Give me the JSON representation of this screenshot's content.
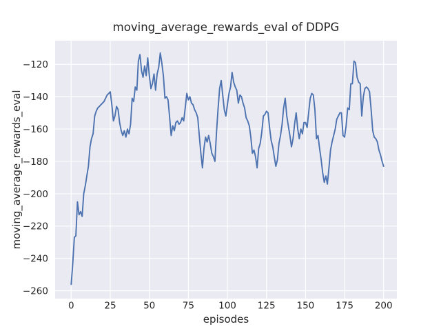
{
  "figure": {
    "title": "moving_average_rewards_eval of DDPG",
    "xlabel": "episodes",
    "ylabel": "moving_average_rewards_eval"
  },
  "colors": {
    "line": "#4c72b0",
    "plot_background": "#eaeaf2",
    "grid": "#ffffff",
    "text": "#262626",
    "figure_background": "#ffffff"
  },
  "chart_data": {
    "type": "line",
    "title": "moving_average_rewards_eval of DDPG",
    "xlabel": "episodes",
    "ylabel": "moving_average_rewards_eval",
    "grid": true,
    "legend": "none",
    "x_ticks": [
      0,
      25,
      50,
      75,
      100,
      125,
      150,
      175,
      200
    ],
    "y_ticks": [
      -120,
      -140,
      -160,
      -180,
      -200,
      -220,
      -240,
      -260
    ],
    "xlim": [
      -10.3,
      208.5
    ],
    "ylim": [
      -264.8,
      -105.4
    ],
    "series": [
      {
        "name": "moving_average_rewards_eval",
        "x": [
          0,
          1,
          2,
          3,
          4,
          5,
          6,
          7,
          8,
          9,
          10,
          11,
          12,
          13,
          14,
          15,
          16,
          17,
          18,
          19,
          20,
          21,
          22,
          23,
          24,
          25,
          26,
          27,
          28,
          29,
          30,
          31,
          32,
          33,
          34,
          35,
          36,
          37,
          38,
          39,
          40,
          41,
          42,
          43,
          44,
          45,
          46,
          47,
          48,
          49,
          50,
          51,
          52,
          53,
          54,
          55,
          56,
          57,
          58,
          59,
          60,
          61,
          62,
          63,
          64,
          65,
          66,
          67,
          68,
          69,
          70,
          71,
          72,
          73,
          74,
          75,
          76,
          77,
          78,
          79,
          80,
          81,
          82,
          83,
          84,
          85,
          86,
          87,
          88,
          89,
          90,
          91,
          92,
          93,
          94,
          95,
          96,
          97,
          98,
          99,
          100,
          101,
          102,
          103,
          104,
          105,
          106,
          107,
          108,
          109,
          110,
          111,
          112,
          113,
          114,
          115,
          116,
          117,
          118,
          119,
          120,
          121,
          122,
          123,
          124,
          125,
          126,
          127,
          128,
          129,
          130,
          131,
          132,
          133,
          134,
          135,
          136,
          137,
          138,
          139,
          140,
          141,
          142,
          143,
          144,
          145,
          146,
          147,
          148,
          149,
          150,
          151,
          152,
          153,
          154,
          155,
          156,
          157,
          158,
          159,
          160,
          161,
          162,
          163,
          164,
          165,
          166,
          167,
          168,
          169,
          170,
          171,
          172,
          173,
          174,
          175,
          176,
          177,
          178,
          179,
          180,
          181,
          182,
          183,
          184,
          185,
          186,
          187,
          188,
          189,
          190,
          191,
          192,
          193,
          194,
          195,
          196,
          197,
          198,
          199,
          200
        ],
        "y": [
          -256,
          -243,
          -227,
          -226,
          -205,
          -213,
          -211,
          -214,
          -200,
          -195,
          -189,
          -183,
          -171,
          -166,
          -163,
          -152,
          -149,
          -147,
          -146,
          -145,
          -144,
          -143,
          -141,
          -139,
          -138,
          -137,
          -145,
          -155,
          -152,
          -146,
          -148,
          -156,
          -161,
          -164,
          -161,
          -165,
          -160,
          -163,
          -157,
          -141,
          -143,
          -134,
          -136,
          -118,
          -114,
          -124,
          -128,
          -121,
          -127,
          -116,
          -127,
          -135,
          -132,
          -126,
          -136,
          -126,
          -122,
          -113,
          -119,
          -127,
          -141,
          -140,
          -142,
          -153,
          -164,
          -158,
          -161,
          -156,
          -155,
          -157,
          -156,
          -153,
          -155,
          -147,
          -138,
          -142,
          -140,
          -144,
          -145,
          -148,
          -150,
          -153,
          -164,
          -175,
          -184,
          -172,
          -165,
          -168,
          -164,
          -169,
          -175,
          -177,
          -180,
          -162,
          -148,
          -135,
          -130,
          -139,
          -148,
          -152,
          -145,
          -138,
          -134,
          -125,
          -131,
          -134,
          -136,
          -144,
          -139,
          -140,
          -144,
          -147,
          -153,
          -155,
          -158,
          -165,
          -175,
          -173,
          -177,
          -184,
          -172,
          -169,
          -162,
          -152,
          -151,
          -149,
          -150,
          -159,
          -167,
          -171,
          -177,
          -183,
          -179,
          -169,
          -164,
          -157,
          -147,
          -141,
          -152,
          -158,
          -164,
          -171,
          -166,
          -157,
          -150,
          -160,
          -166,
          -160,
          -163,
          -156,
          -156,
          -159,
          -150,
          -141,
          -138,
          -139,
          -148,
          -166,
          -164,
          -172,
          -179,
          -187,
          -193,
          -189,
          -194,
          -184,
          -173,
          -168,
          -164,
          -160,
          -154,
          -152,
          -150,
          -150,
          -164,
          -165,
          -158,
          -147,
          -148,
          -132,
          -132,
          -118,
          -119,
          -128,
          -131,
          -132,
          -152,
          -140,
          -135,
          -134,
          -135,
          -137,
          -148,
          -161,
          -165,
          -166,
          -168,
          -173,
          -176,
          -180,
          -183
        ]
      }
    ]
  }
}
